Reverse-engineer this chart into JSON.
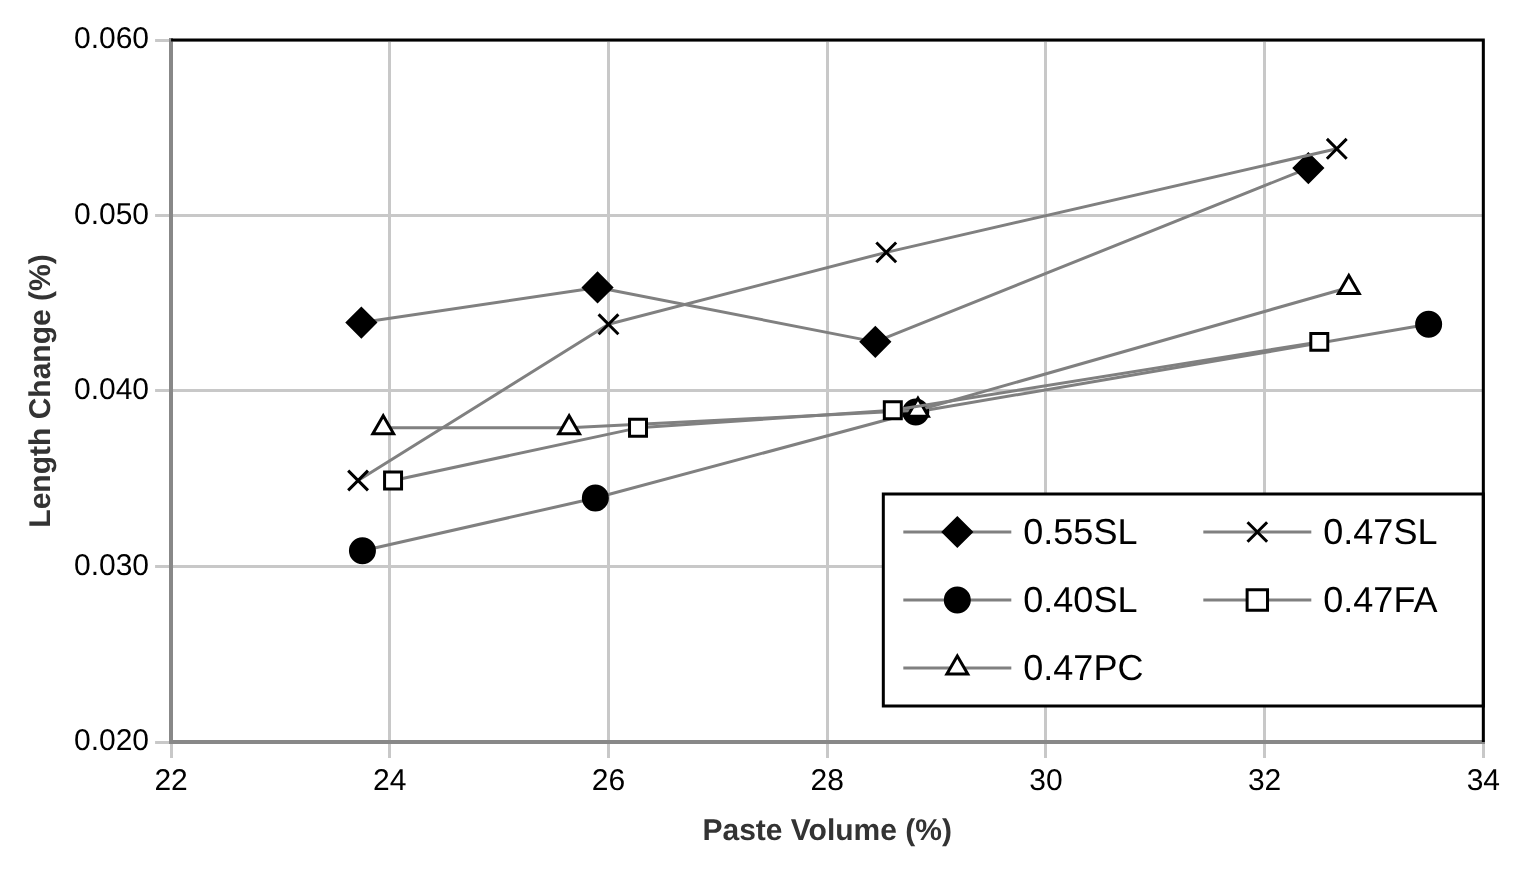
{
  "chart_data": {
    "type": "line",
    "xlabel": "Paste Volume (%)",
    "ylabel": "Length Change (%)",
    "xlim": [
      22,
      34
    ],
    "xticks": [
      22,
      24,
      26,
      28,
      30,
      32,
      34
    ],
    "ylim": [
      0.02,
      0.06
    ],
    "yticks": [
      {
        "value": 0.02,
        "label": "0.020"
      },
      {
        "value": 0.03,
        "label": "0.030"
      },
      {
        "value": 0.04,
        "label": "0.040"
      },
      {
        "value": 0.05,
        "label": "0.050"
      },
      {
        "value": 0.06,
        "label": "0.060"
      }
    ],
    "grid": true,
    "legend": "bottom right",
    "line_style": "solid",
    "series": [
      {
        "name": "0.55SL",
        "color": "#000000",
        "marker": "diamond",
        "x": [
          23.74,
          25.9,
          28.44,
          32.4
        ],
        "values": [
          0.0439,
          0.0459,
          0.0428,
          0.0527
        ]
      },
      {
        "name": "0.47SL",
        "color": "#000000",
        "marker": "cross",
        "x": [
          23.71,
          26.0,
          28.54,
          32.66
        ],
        "values": [
          0.0349,
          0.0438,
          0.0479,
          0.0538
        ]
      },
      {
        "name": "0.40SL",
        "color": "#000000",
        "marker": "circle",
        "x": [
          23.75,
          25.88,
          28.81,
          33.5
        ],
        "values": [
          0.0309,
          0.0339,
          0.0388,
          0.0438
        ]
      },
      {
        "name": "0.47FA",
        "color": "#000000",
        "marker": "square",
        "x": [
          24.03,
          26.27,
          28.6,
          32.5
        ],
        "values": [
          0.0349,
          0.0379,
          0.0389,
          0.0428
        ]
      },
      {
        "name": "0.47PC",
        "color": "#000000",
        "marker": "triangle",
        "x": [
          23.94,
          25.64,
          28.83,
          32.77
        ],
        "values": [
          0.0379,
          0.0379,
          0.0389,
          0.0459
        ]
      }
    ]
  }
}
